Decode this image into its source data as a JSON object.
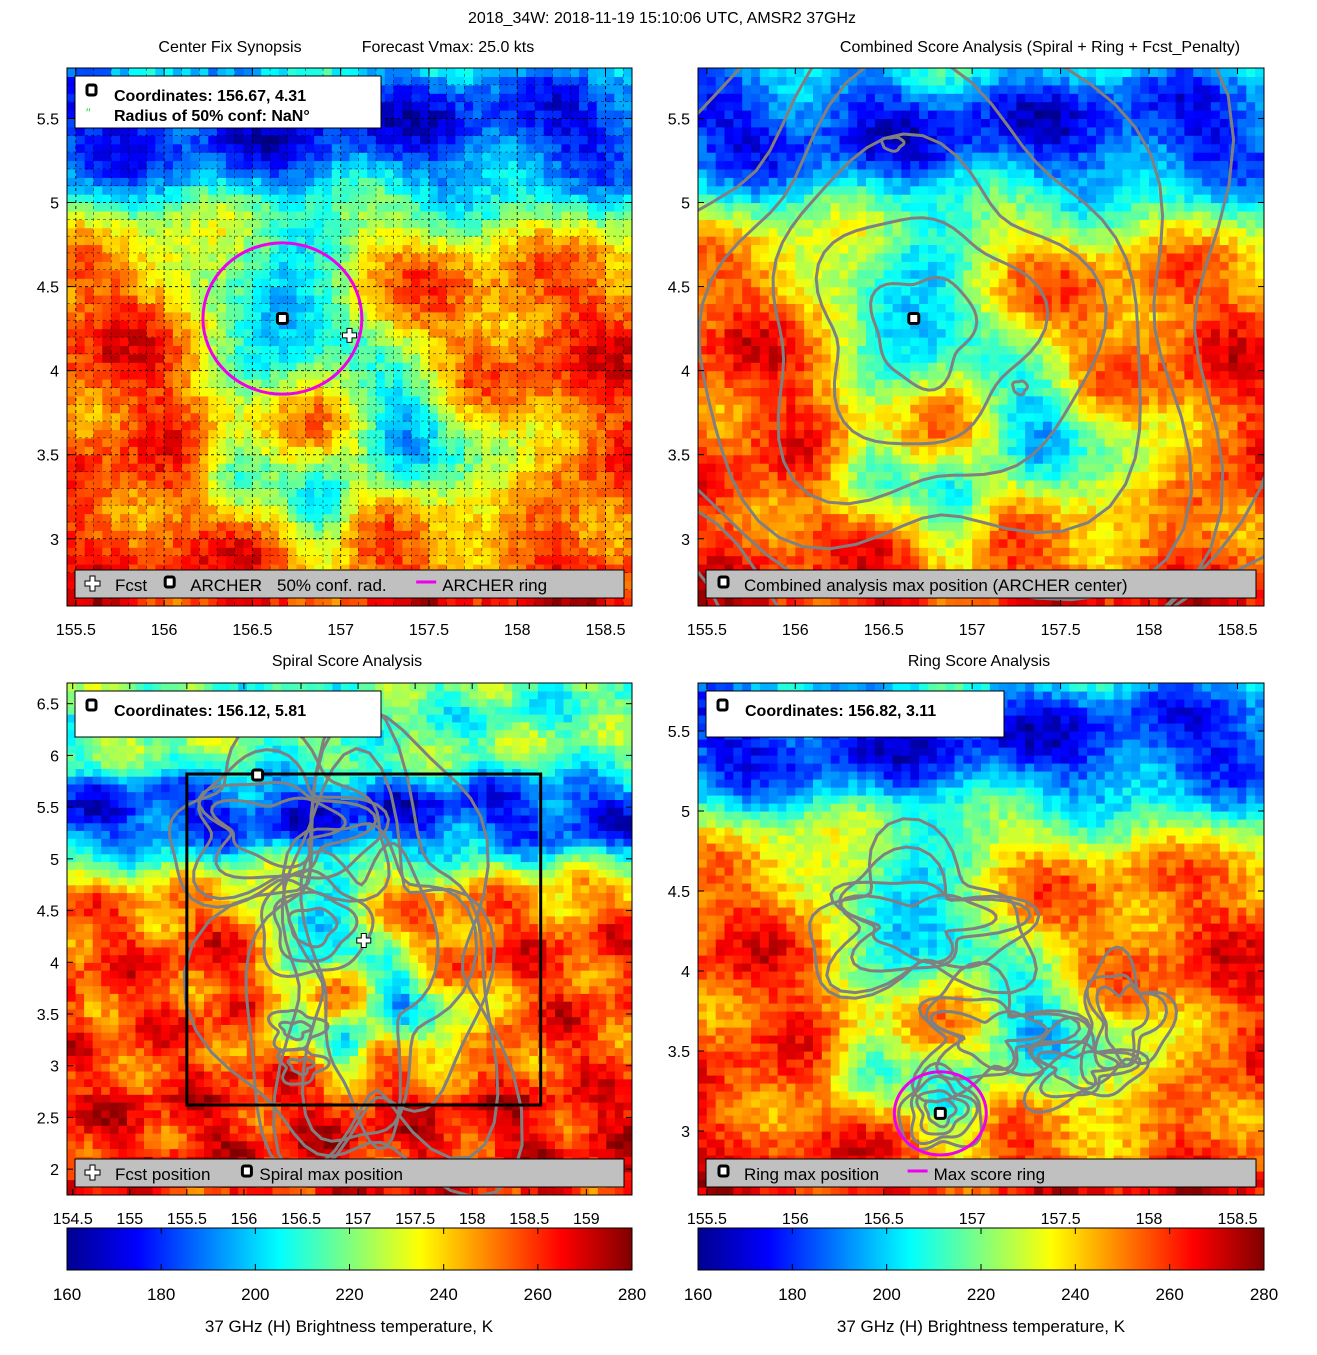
{
  "figure_title": "2018_34W: 2018-11-19 15:10:06 UTC, AMSR2 37GHz",
  "colors": {
    "ring": "#ee00ee",
    "contour": "#808080",
    "legend_bg": "#c0c0c0",
    "cold": "#1a3cff",
    "warm": "#e0301c"
  },
  "chart_data": [
    {
      "id": "center_fix",
      "type": "heatmap",
      "title_left": "Center Fix Synopsis",
      "title_right": "Forecast Vmax: 25.0 kts",
      "xlim": [
        155.45,
        158.65
      ],
      "ylim": [
        2.6,
        5.8
      ],
      "xticks": [
        "155.5",
        "156",
        "156.5",
        "157",
        "157.5",
        "158",
        "158.5"
      ],
      "yticks": [
        "3",
        "3.5",
        "4",
        "4.5",
        "5",
        "5.5"
      ],
      "grid": true,
      "info_box": {
        "lines": [
          "Coordinates: 156.67, 4.31",
          "Radius of 50% conf: NaN°"
        ]
      },
      "legend": {
        "placement": "bottom",
        "entries": [
          {
            "symbol": "cross",
            "label": "Fcst"
          },
          {
            "symbol": "square",
            "label": "ARCHER"
          },
          {
            "symbol": "none",
            "label": "50% conf. rad."
          },
          {
            "symbol": "magenta-line",
            "label": "ARCHER ring"
          }
        ]
      },
      "archer_center": [
        156.67,
        4.31
      ],
      "forecast_position": [
        157.05,
        4.21
      ],
      "ring": {
        "center": [
          156.67,
          4.31
        ],
        "radius_deg": 0.45
      }
    },
    {
      "id": "combined",
      "type": "heatmap",
      "title_left": "Combined Score Analysis (Spiral + Ring + Fcst_Penalty)",
      "title_right": "",
      "xlim": [
        155.45,
        158.65
      ],
      "ylim": [
        2.6,
        5.8
      ],
      "xticks": [
        "155.5",
        "156",
        "156.5",
        "157",
        "157.5",
        "158",
        "158.5"
      ],
      "yticks": [
        "3",
        "3.5",
        "4",
        "4.5",
        "5",
        "5.5"
      ],
      "grid": false,
      "legend": {
        "placement": "bottom",
        "entries": [
          {
            "symbol": "square",
            "label": "Combined analysis max position (ARCHER center)"
          }
        ]
      },
      "archer_center": [
        156.67,
        4.31
      ]
    },
    {
      "id": "spiral",
      "type": "heatmap",
      "title_left": "Spiral Score Analysis",
      "title_right": "",
      "xlim": [
        154.45,
        159.4
      ],
      "ylim": [
        1.75,
        6.7
      ],
      "xticks": [
        "154.5",
        "155",
        "155.5",
        "156",
        "156.5",
        "157",
        "157.5",
        "158",
        "158.5",
        "159"
      ],
      "yticks": [
        "2",
        "2.5",
        "3",
        "3.5",
        "4",
        "4.5",
        "5",
        "5.5",
        "6",
        "6.5"
      ],
      "grid": false,
      "info_box": {
        "lines": [
          "Coordinates: 156.12, 5.81"
        ]
      },
      "legend": {
        "placement": "bottom",
        "entries": [
          {
            "symbol": "cross",
            "label": "Fcst position"
          },
          {
            "symbol": "square",
            "label": "Spiral max position"
          }
        ]
      },
      "spiral_max": [
        156.12,
        5.81
      ],
      "forecast_position": [
        157.05,
        4.21
      ],
      "search_box": {
        "x": [
          155.5,
          158.6
        ],
        "y": [
          2.62,
          5.82
        ]
      }
    },
    {
      "id": "ring",
      "type": "heatmap",
      "title_left": "Ring Score Analysis",
      "title_right": "",
      "xlim": [
        155.45,
        158.65
      ],
      "ylim": [
        2.6,
        5.8
      ],
      "xticks": [
        "155.5",
        "156",
        "156.5",
        "157",
        "157.5",
        "158",
        "158.5"
      ],
      "yticks": [
        "3",
        "3.5",
        "4",
        "4.5",
        "5",
        "5.5"
      ],
      "grid": false,
      "info_box": {
        "lines": [
          "Coordinates: 156.82, 3.11"
        ]
      },
      "legend": {
        "placement": "bottom",
        "entries": [
          {
            "symbol": "square",
            "label": "Ring max position"
          },
          {
            "symbol": "magenta-line",
            "label": "Max score ring"
          }
        ]
      },
      "ring_max": [
        156.82,
        3.11
      ],
      "ring": {
        "center": [
          156.82,
          3.11
        ],
        "radius_deg": 0.26
      }
    }
  ],
  "colorbar": {
    "ticks": [
      "160",
      "180",
      "200",
      "220",
      "240",
      "260",
      "280"
    ],
    "range": [
      160,
      280
    ],
    "label": "37 GHz (H) Brightness temperature, K"
  }
}
